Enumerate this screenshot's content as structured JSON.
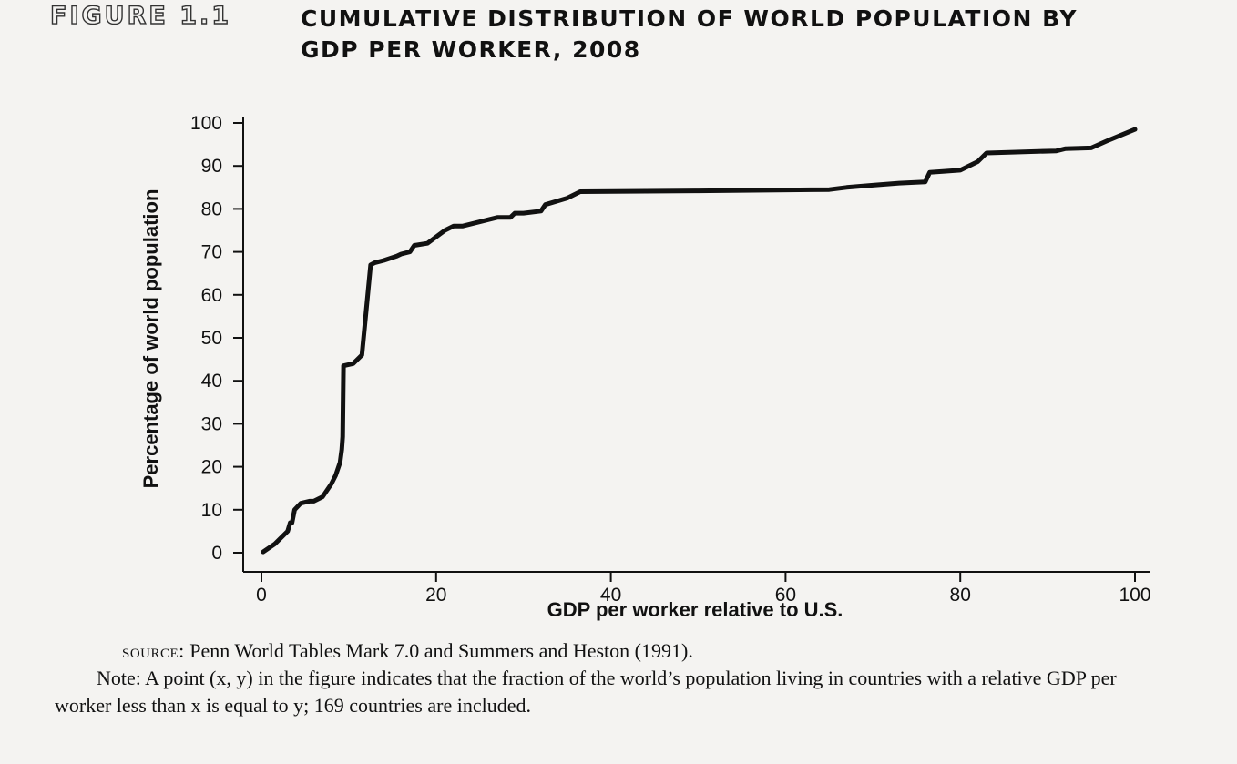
{
  "figure": {
    "label": "FIGURE 1.1",
    "title_line1": "CUMULATIVE DISTRIBUTION OF WORLD POPULATION BY",
    "title_line2": "GDP PER WORKER, 2008"
  },
  "caption": {
    "source_label": "source:",
    "source_text": " Penn World Tables Mark 7.0 and Summers and Heston (1991).",
    "note": "Note: A point (x, y) in the figure indicates that the fraction of the world’s population living in countries with a relative GDP per worker less than x is equal to y; 169 countries are included."
  },
  "chart_data": {
    "type": "line",
    "title": "CUMULATIVE DISTRIBUTION OF WORLD POPULATION BY GDP PER WORKER, 2008",
    "xlabel": "GDP per worker relative to U.S.",
    "ylabel": "Percentage of world population",
    "xlim": [
      0,
      100
    ],
    "ylim": [
      0,
      100
    ],
    "xticks": [
      0,
      20,
      40,
      60,
      80,
      100
    ],
    "yticks": [
      0,
      10,
      20,
      30,
      40,
      50,
      60,
      70,
      80,
      90,
      100
    ],
    "grid": false,
    "series": [
      {
        "values": [
          [
            0.2,
            0.2
          ],
          [
            1.5,
            2
          ],
          [
            2.5,
            4
          ],
          [
            3,
            5
          ],
          [
            3.3,
            7
          ],
          [
            3.5,
            7
          ],
          [
            3.8,
            10
          ],
          [
            4.5,
            11.5
          ],
          [
            5.5,
            12
          ],
          [
            6,
            12
          ],
          [
            7,
            13
          ],
          [
            8,
            16
          ],
          [
            8.5,
            18
          ],
          [
            9,
            21
          ],
          [
            9.2,
            24
          ],
          [
            9.3,
            27
          ],
          [
            9.4,
            43.5
          ],
          [
            10.5,
            44
          ],
          [
            11,
            45
          ],
          [
            11.5,
            46
          ],
          [
            12.5,
            67
          ],
          [
            13,
            67.5
          ],
          [
            14,
            68
          ],
          [
            15.5,
            69
          ],
          [
            16,
            69.5
          ],
          [
            17,
            70
          ],
          [
            17.5,
            71.5
          ],
          [
            19,
            72
          ],
          [
            21,
            75
          ],
          [
            22,
            76
          ],
          [
            23,
            76
          ],
          [
            24,
            76.5
          ],
          [
            25,
            77
          ],
          [
            26,
            77.5
          ],
          [
            27,
            78
          ],
          [
            28.5,
            78
          ],
          [
            29,
            79
          ],
          [
            30,
            79
          ],
          [
            32,
            79.5
          ],
          [
            32.5,
            81
          ],
          [
            35,
            82.5
          ],
          [
            36.5,
            84
          ],
          [
            50,
            84.2
          ],
          [
            65,
            84.5
          ],
          [
            67,
            85
          ],
          [
            70,
            85.5
          ],
          [
            73,
            86
          ],
          [
            76,
            86.3
          ],
          [
            76.5,
            88.5
          ],
          [
            78,
            88.7
          ],
          [
            80,
            89
          ],
          [
            82,
            91
          ],
          [
            83,
            93
          ],
          [
            86,
            93.2
          ],
          [
            91,
            93.5
          ],
          [
            92,
            94
          ],
          [
            95,
            94.2
          ],
          [
            97,
            96
          ],
          [
            100,
            98.5
          ]
        ]
      }
    ]
  }
}
